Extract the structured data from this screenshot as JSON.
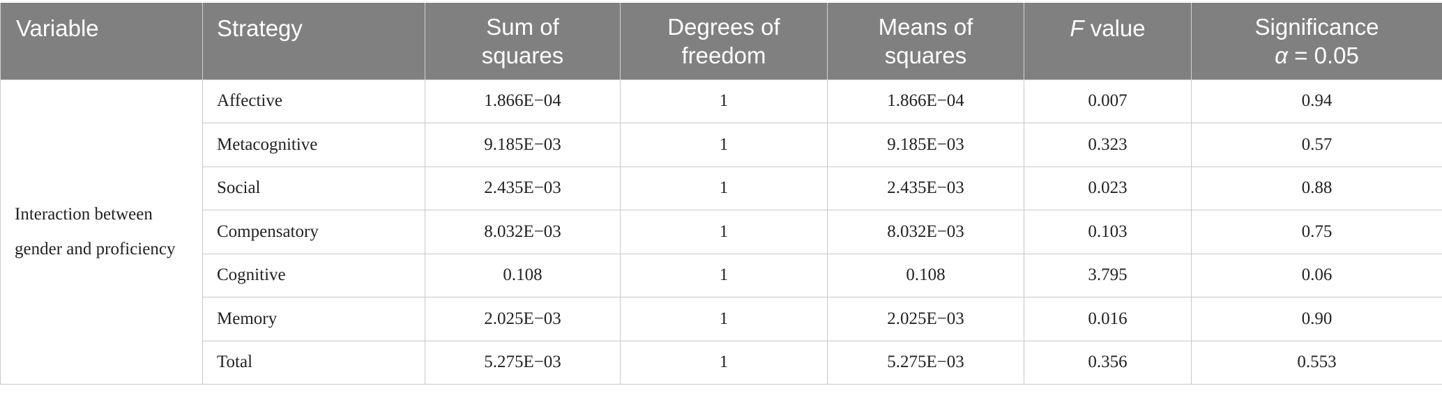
{
  "table": {
    "headers": {
      "variable": "Variable",
      "strategy": "Strategy",
      "sum_of_squares": [
        "Sum of",
        "squares"
      ],
      "degrees_of_freedom": [
        "Degrees of",
        "freedom"
      ],
      "means_of_squares": [
        "Means of",
        "squares"
      ],
      "f_value": {
        "italic": "F",
        "rest": " value"
      },
      "significance": {
        "line1": "Significance",
        "alpha_symbol": "α",
        "alpha_rest": " = 0.05"
      }
    },
    "variable_label": "Interaction between gender and proficiency",
    "rows": [
      {
        "strategy": "Affective",
        "sum_of_squares": "1.866E−04",
        "df": "1",
        "mean_squares": "1.866E−04",
        "f_value": "0.007",
        "significance": "0.94"
      },
      {
        "strategy": "Metacognitive",
        "sum_of_squares": "9.185E−03",
        "df": "1",
        "mean_squares": "9.185E−03",
        "f_value": "0.323",
        "significance": "0.57"
      },
      {
        "strategy": "Social",
        "sum_of_squares": "2.435E−03",
        "df": "1",
        "mean_squares": "2.435E−03",
        "f_value": "0.023",
        "significance": "0.88"
      },
      {
        "strategy": "Compensatory",
        "sum_of_squares": "8.032E−03",
        "df": "1",
        "mean_squares": "8.032E−03",
        "f_value": "0.103",
        "significance": "0.75"
      },
      {
        "strategy": "Cognitive",
        "sum_of_squares": "0.108",
        "df": "1",
        "mean_squares": "0.108",
        "f_value": "3.795",
        "significance": "0.06"
      },
      {
        "strategy": "Memory",
        "sum_of_squares": "2.025E−03",
        "df": "1",
        "mean_squares": "2.025E−03",
        "f_value": "0.016",
        "significance": "0.90"
      },
      {
        "strategy": "Total",
        "sum_of_squares": "5.275E−03",
        "df": "1",
        "mean_squares": "5.275E−03",
        "f_value": "0.356",
        "significance": "0.553"
      }
    ]
  }
}
